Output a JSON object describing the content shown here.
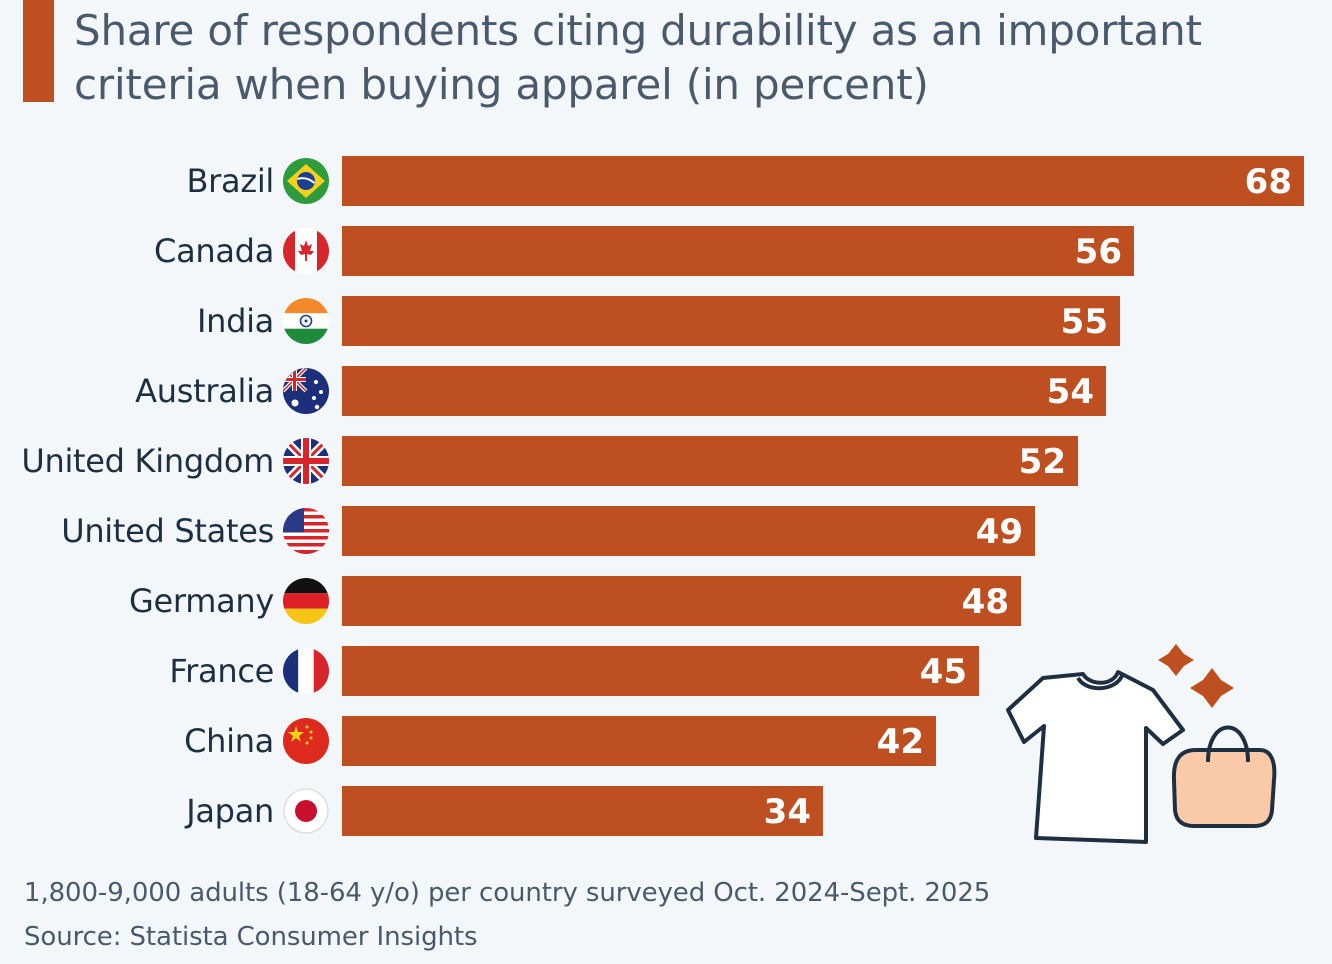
{
  "title": "Share of respondents citing durability as an important criteria when buying apparel (in percent)",
  "footer": {
    "note": "1,800-9,000 adults (18-64 y/o) per country surveyed Oct. 2024-Sept. 2025",
    "source": "Source: Statista Consumer Insights"
  },
  "colors": {
    "bar": "#bd4f21",
    "background": "#f3f7fa",
    "title": "#4a5a6c"
  },
  "chart_data": {
    "type": "bar",
    "orientation": "horizontal",
    "title": "Share of respondents citing durability as an important criteria when buying apparel (in percent)",
    "xlim": [
      0,
      68
    ],
    "categories": [
      "Brazil",
      "Canada",
      "India",
      "Australia",
      "United Kingdom",
      "United States",
      "Germany",
      "France",
      "China",
      "Japan"
    ],
    "values": [
      68,
      56,
      55,
      54,
      52,
      49,
      48,
      45,
      42,
      34
    ],
    "flag_icons": [
      "brazil-flag-icon",
      "canada-flag-icon",
      "india-flag-icon",
      "australia-flag-icon",
      "united-kingdom-flag-icon",
      "united-states-flag-icon",
      "germany-flag-icon",
      "france-flag-icon",
      "china-flag-icon",
      "japan-flag-icon"
    ]
  },
  "illustration": {
    "icons": [
      "t-shirt-icon",
      "shopping-bag-icon",
      "sparkle-icon"
    ]
  }
}
